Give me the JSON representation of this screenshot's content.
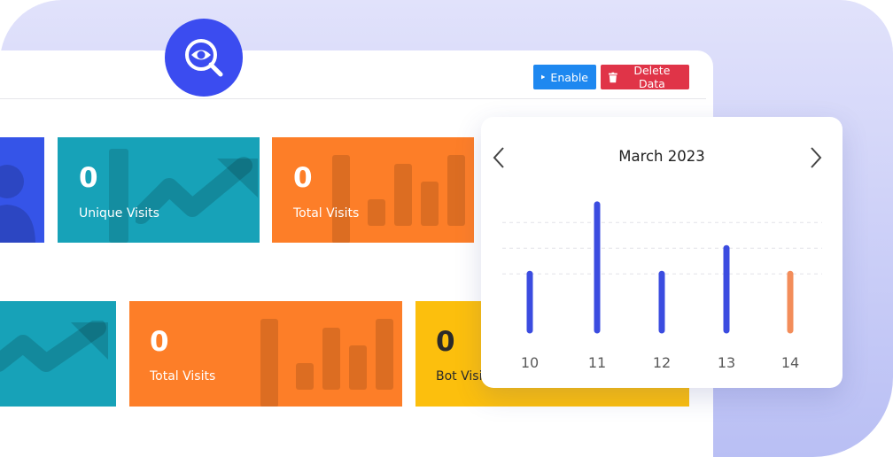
{
  "header": {
    "enable_label": "Enable",
    "delete_label": "Delete Data"
  },
  "cards": [
    {
      "value": "0",
      "label": "Unique Visits",
      "color": "#17a2b8"
    },
    {
      "value": "0",
      "label": "Total Visits",
      "color": "#fd7e28"
    },
    {
      "value": "0",
      "label": "Total Visits",
      "color": "#fd7e28"
    },
    {
      "value": "0",
      "label": "Bot Visi",
      "color": "#fcbf0d"
    }
  ],
  "colors": {
    "accent": "#3b4cf0",
    "enable": "#1e88f0",
    "delete": "#e03448",
    "bar_default": "#3b4ce0",
    "bar_highlight": "#f38d5a"
  },
  "calendar": {
    "title": "March 2023"
  },
  "chart_data": {
    "type": "bar",
    "categories": [
      "10",
      "11",
      "12",
      "13",
      "14"
    ],
    "values": [
      2.2,
      4.9,
      2.2,
      3.2,
      2.2
    ],
    "highlight_index": 4,
    "ylim": [
      0,
      5
    ],
    "grid": true
  }
}
